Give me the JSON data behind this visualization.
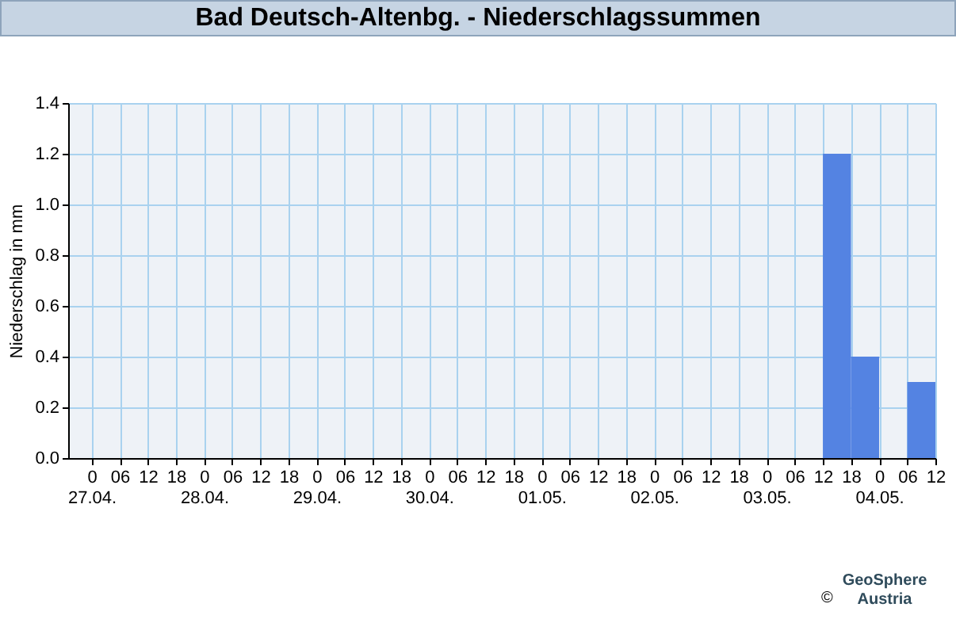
{
  "chart_data": {
    "type": "bar",
    "title": "Bad Deutsch-Altenbg. - Niederschlagssummen",
    "ylabel": "Niederschlag in mm",
    "x": [
      "--05-03T15:00",
      "--05-03T21:00",
      "--05-04T09:00"
    ],
    "values": [
      1.2,
      0.4,
      0.3
    ],
    "color": "#5483e2",
    "xlim": [
      "--04-26T19:00",
      "--05-04T12:00"
    ],
    "xticks": [
      {
        "value": "--04-27T00:00",
        "label": "0\n27.04."
      },
      {
        "value": "--04-27T06:00",
        "label": "06"
      },
      {
        "value": "--04-27T12:00",
        "label": "12"
      },
      {
        "value": "--04-27T18:00",
        "label": "18"
      },
      {
        "value": "--04-28T00:00",
        "label": "0\n28.04."
      },
      {
        "value": "--04-28T06:00",
        "label": "06"
      },
      {
        "value": "--04-28T12:00",
        "label": "12"
      },
      {
        "value": "--04-28T18:00",
        "label": "18"
      },
      {
        "value": "--04-29T00:00",
        "label": "0\n29.04."
      },
      {
        "value": "--04-29T06:00",
        "label": "06"
      },
      {
        "value": "--04-29T12:00",
        "label": "12"
      },
      {
        "value": "--04-29T18:00",
        "label": "18"
      },
      {
        "value": "--04-30T00:00",
        "label": "0\n30.04."
      },
      {
        "value": "--04-30T06:00",
        "label": "06"
      },
      {
        "value": "--04-30T12:00",
        "label": "12"
      },
      {
        "value": "--04-30T18:00",
        "label": "18"
      },
      {
        "value": "--05-01T00:00",
        "label": "0\n01.05."
      },
      {
        "value": "--05-01T06:00",
        "label": "06"
      },
      {
        "value": "--05-01T12:00",
        "label": "12"
      },
      {
        "value": "--05-01T18:00",
        "label": "18"
      },
      {
        "value": "--05-02T00:00",
        "label": "0\n02.05."
      },
      {
        "value": "--05-02T06:00",
        "label": "06"
      },
      {
        "value": "--05-02T12:00",
        "label": "12"
      },
      {
        "value": "--05-02T18:00",
        "label": "18"
      },
      {
        "value": "--05-03T00:00",
        "label": "0\n03.05."
      },
      {
        "value": "--05-03T06:00",
        "label": "06"
      },
      {
        "value": "--05-03T12:00",
        "label": "12"
      },
      {
        "value": "--05-03T18:00",
        "label": "18"
      },
      {
        "value": "--05-04T00:00",
        "label": "0\n04.05."
      },
      {
        "value": "--05-04T06:00",
        "label": "06"
      },
      {
        "value": "--05-04T12:00",
        "label": "12"
      }
    ],
    "ylim": [
      0,
      1.4
    ],
    "yticks": [
      {
        "value": 0,
        "label": "0.0"
      },
      0.2,
      0.4,
      0.6,
      0.8,
      {
        "value": 1,
        "label": "1.0"
      },
      1.2,
      1.4
    ],
    "grid": true,
    "annotations": [
      "©",
      "GeoSphere Austria"
    ]
  }
}
